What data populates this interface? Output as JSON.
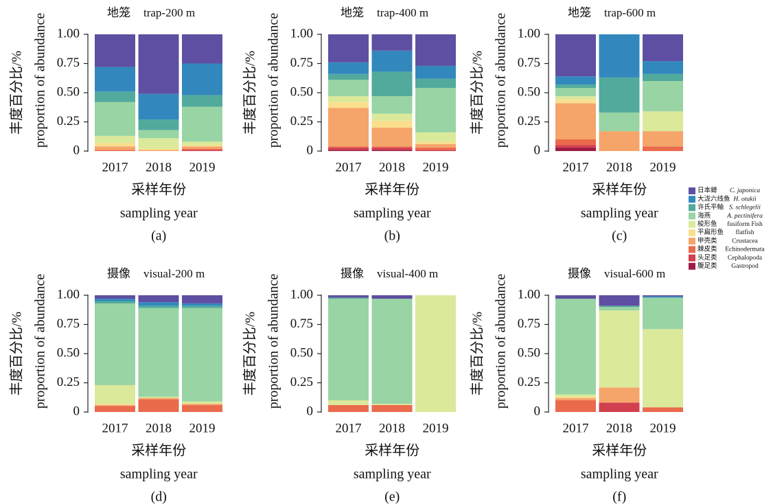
{
  "legend": [
    {
      "name": "日本蟳",
      "latin": "C. japonica",
      "color": "#5e4fa2"
    },
    {
      "name": "大泷六线鱼",
      "latin": "H. otakii",
      "color": "#3288bd"
    },
    {
      "name": "许氏平鲉",
      "latin": "S. schlegelii",
      "color": "#52aa9c"
    },
    {
      "name": "海燕",
      "latin": "A. pectinifera",
      "color": "#99d4a4"
    },
    {
      "name": "梭形鱼",
      "latin": "fusiform Fish",
      "color": "#dbe99a"
    },
    {
      "name": "平扁形鱼",
      "latin": "flatfish",
      "color": "#f9df8e"
    },
    {
      "name": "甲壳类",
      "latin": "Crustacea",
      "color": "#f5a56a"
    },
    {
      "name": "棘皮类",
      "latin": "Echinodermata",
      "color": "#ea6a4c"
    },
    {
      "name": "头足类",
      "latin": "Cephalopoda",
      "color": "#d0404f"
    },
    {
      "name": "腹足类",
      "latin": "Gastropod",
      "color": "#9e1c45"
    }
  ],
  "chart_data": [
    {
      "type": "bar",
      "stacked": true,
      "title_cn": "地笼",
      "title": "trap-200 m",
      "panel": "(a)",
      "ylabel_cn": "丰度百分比/%",
      "ylabel": "proportion of abundance",
      "xlabel_cn": "采样年份",
      "xlabel": "sampling year",
      "categories": [
        "2017",
        "2018",
        "2019"
      ],
      "ylim": [
        0,
        1
      ],
      "yticks": [
        0,
        0.25,
        {
          "value": 0.5,
          "label": "0.50"
        },
        0.75,
        {
          "value": 1,
          "label": "1.00"
        }
      ],
      "series": [
        {
          "values": [
            0.28,
            0.51,
            0.25
          ]
        },
        {
          "values": [
            0.21,
            0.22,
            0.27
          ]
        },
        {
          "values": [
            0.09,
            0.09,
            0.1
          ]
        },
        {
          "values": [
            0.29,
            0.07,
            0.3
          ]
        },
        {
          "values": [
            0.06,
            0.09,
            0.03
          ]
        },
        {
          "values": [
            0.03,
            0.01,
            0.01
          ]
        },
        {
          "values": [
            0.03,
            0.01,
            0.02
          ]
        },
        {
          "values": [
            0.01,
            0,
            0.01
          ]
        },
        {
          "values": [
            0,
            0,
            0.01
          ]
        },
        {
          "values": [
            0,
            0,
            0
          ]
        }
      ]
    },
    {
      "type": "bar",
      "stacked": true,
      "title_cn": "地笼",
      "title": "trap-400 m",
      "panel": "(b)",
      "ylabel_cn": "丰度百分比/%",
      "ylabel": "proportion of abundance",
      "xlabel_cn": "采样年份",
      "xlabel": "sampling year",
      "categories": [
        "2017",
        "2018",
        "2019"
      ],
      "ylim": [
        0,
        1
      ],
      "yticks": [
        0,
        0.25,
        {
          "value": 0.5,
          "label": "0.50"
        },
        0.75,
        {
          "value": 1,
          "label": "1.00"
        }
      ],
      "series": [
        {
          "values": [
            0.24,
            0.14,
            0.27
          ]
        },
        {
          "values": [
            0.1,
            0.18,
            0.11
          ]
        },
        {
          "values": [
            0.05,
            0.21,
            0.08
          ]
        },
        {
          "values": [
            0.14,
            0.15,
            0.38
          ]
        },
        {
          "values": [
            0.05,
            0.06,
            0.08
          ]
        },
        {
          "values": [
            0.05,
            0.06,
            0.02
          ]
        },
        {
          "values": [
            0.33,
            0.16,
            0.03
          ]
        },
        {
          "values": [
            0.01,
            0.01,
            0.02
          ]
        },
        {
          "values": [
            0.02,
            0.02,
            0.01
          ]
        },
        {
          "values": [
            0.01,
            0.01,
            0
          ]
        }
      ]
    },
    {
      "type": "bar",
      "stacked": true,
      "title_cn": "地笼",
      "title": "trap-600 m",
      "panel": "(c)",
      "ylabel_cn": "丰度百分比/%",
      "ylabel": "proportion of abundance",
      "xlabel_cn": "采样年份",
      "xlabel": "sampling year",
      "categories": [
        "2017",
        "2018",
        "2019"
      ],
      "ylim": [
        0,
        1
      ],
      "yticks": [
        0,
        0.25,
        {
          "value": 0.5,
          "label": "0.50"
        },
        0.75,
        {
          "value": 1,
          "label": "1.00"
        }
      ],
      "series": [
        {
          "values": [
            0.36,
            0,
            0.23
          ]
        },
        {
          "values": [
            0.07,
            0.37,
            0.11
          ]
        },
        {
          "values": [
            0.03,
            0.3,
            0.06
          ]
        },
        {
          "values": [
            0.07,
            0.16,
            0.26
          ]
        },
        {
          "values": [
            0.03,
            0,
            0.17
          ]
        },
        {
          "values": [
            0.03,
            0,
            0
          ]
        },
        {
          "values": [
            0.31,
            0.17,
            0.13
          ]
        },
        {
          "values": [
            0.05,
            0,
            0.04
          ]
        },
        {
          "values": [
            0.02,
            0,
            0
          ]
        },
        {
          "values": [
            0.03,
            0,
            0
          ]
        }
      ]
    },
    {
      "type": "bar",
      "stacked": true,
      "title_cn": "摄像",
      "title": "visual-200 m",
      "panel": "(d)",
      "ylabel_cn": "丰度百分比/%",
      "ylabel": "proportion of abundance",
      "xlabel_cn": "采样年份",
      "xlabel": "sampling year",
      "categories": [
        "2017",
        "2018",
        "2019"
      ],
      "ylim": [
        0,
        1
      ],
      "yticks": [
        0,
        0.25,
        {
          "value": 0.5,
          "label": "0.50"
        },
        0.75,
        {
          "value": 1,
          "label": "1.00"
        }
      ],
      "series": [
        {
          "values": [
            0.03,
            0.06,
            0.07
          ]
        },
        {
          "values": [
            0.02,
            0.03,
            0.02
          ]
        },
        {
          "values": [
            0.02,
            0.02,
            0.02
          ]
        },
        {
          "values": [
            0.7,
            0.76,
            0.8
          ]
        },
        {
          "values": [
            0.16,
            0.01,
            0.02
          ]
        },
        {
          "values": [
            0.01,
            0,
            0
          ]
        },
        {
          "values": [
            0.01,
            0.01,
            0.01
          ]
        },
        {
          "values": [
            0.05,
            0.11,
            0.06
          ]
        },
        {
          "values": [
            0,
            0,
            0
          ]
        },
        {
          "values": [
            0,
            0,
            0
          ]
        }
      ]
    },
    {
      "type": "bar",
      "stacked": true,
      "title_cn": "摄像",
      "title": "visual-400 m",
      "panel": "(e)",
      "ylabel_cn": "丰度百分比/%",
      "ylabel": "proportion of abundance",
      "xlabel_cn": "采样年份",
      "xlabel": "sampling year",
      "categories": [
        "2017",
        "2018",
        "2019"
      ],
      "ylim": [
        0,
        1
      ],
      "yticks": [
        0,
        0.25,
        {
          "value": 0.5,
          "label": "0.50"
        },
        0.75,
        {
          "value": 1,
          "label": "1.00"
        }
      ],
      "series": [
        {
          "values": [
            0.02,
            0.03,
            0
          ]
        },
        {
          "values": [
            0,
            0,
            0
          ]
        },
        {
          "values": [
            0.01,
            0,
            0
          ]
        },
        {
          "values": [
            0.87,
            0.9,
            0
          ]
        },
        {
          "values": [
            0.04,
            0.01,
            1
          ]
        },
        {
          "values": [
            0,
            0,
            0
          ]
        },
        {
          "values": [
            0,
            0,
            0
          ]
        },
        {
          "values": [
            0.06,
            0.06,
            0
          ]
        },
        {
          "values": [
            0,
            0,
            0
          ]
        },
        {
          "values": [
            0,
            0,
            0
          ]
        }
      ]
    },
    {
      "type": "bar",
      "stacked": true,
      "title_cn": "摄像",
      "title": "visual-600 m",
      "panel": "(f)",
      "ylabel_cn": "丰度百分比/%",
      "ylabel": "proportion of abundance",
      "xlabel_cn": "采样年份",
      "xlabel": "sampling year",
      "categories": [
        "2017",
        "2018",
        "2019"
      ],
      "ylim": [
        0,
        1
      ],
      "yticks": [
        0,
        0.25,
        {
          "value": 0.5,
          "label": "0.50"
        },
        0.75,
        {
          "value": 1,
          "label": "1.00"
        }
      ],
      "series": [
        {
          "values": [
            0.03,
            0.09,
            0.01
          ]
        },
        {
          "values": [
            0,
            0,
            0.01
          ]
        },
        {
          "values": [
            0,
            0.01,
            0
          ]
        },
        {
          "values": [
            0.82,
            0.03,
            0.27
          ]
        },
        {
          "values": [
            0.02,
            0.66,
            0.67
          ]
        },
        {
          "values": [
            0.01,
            0,
            0
          ]
        },
        {
          "values": [
            0.02,
            0.13,
            0
          ]
        },
        {
          "values": [
            0.1,
            0,
            0.04
          ]
        },
        {
          "values": [
            0,
            0.08,
            0
          ]
        },
        {
          "values": [
            0,
            0,
            0
          ]
        }
      ]
    }
  ]
}
